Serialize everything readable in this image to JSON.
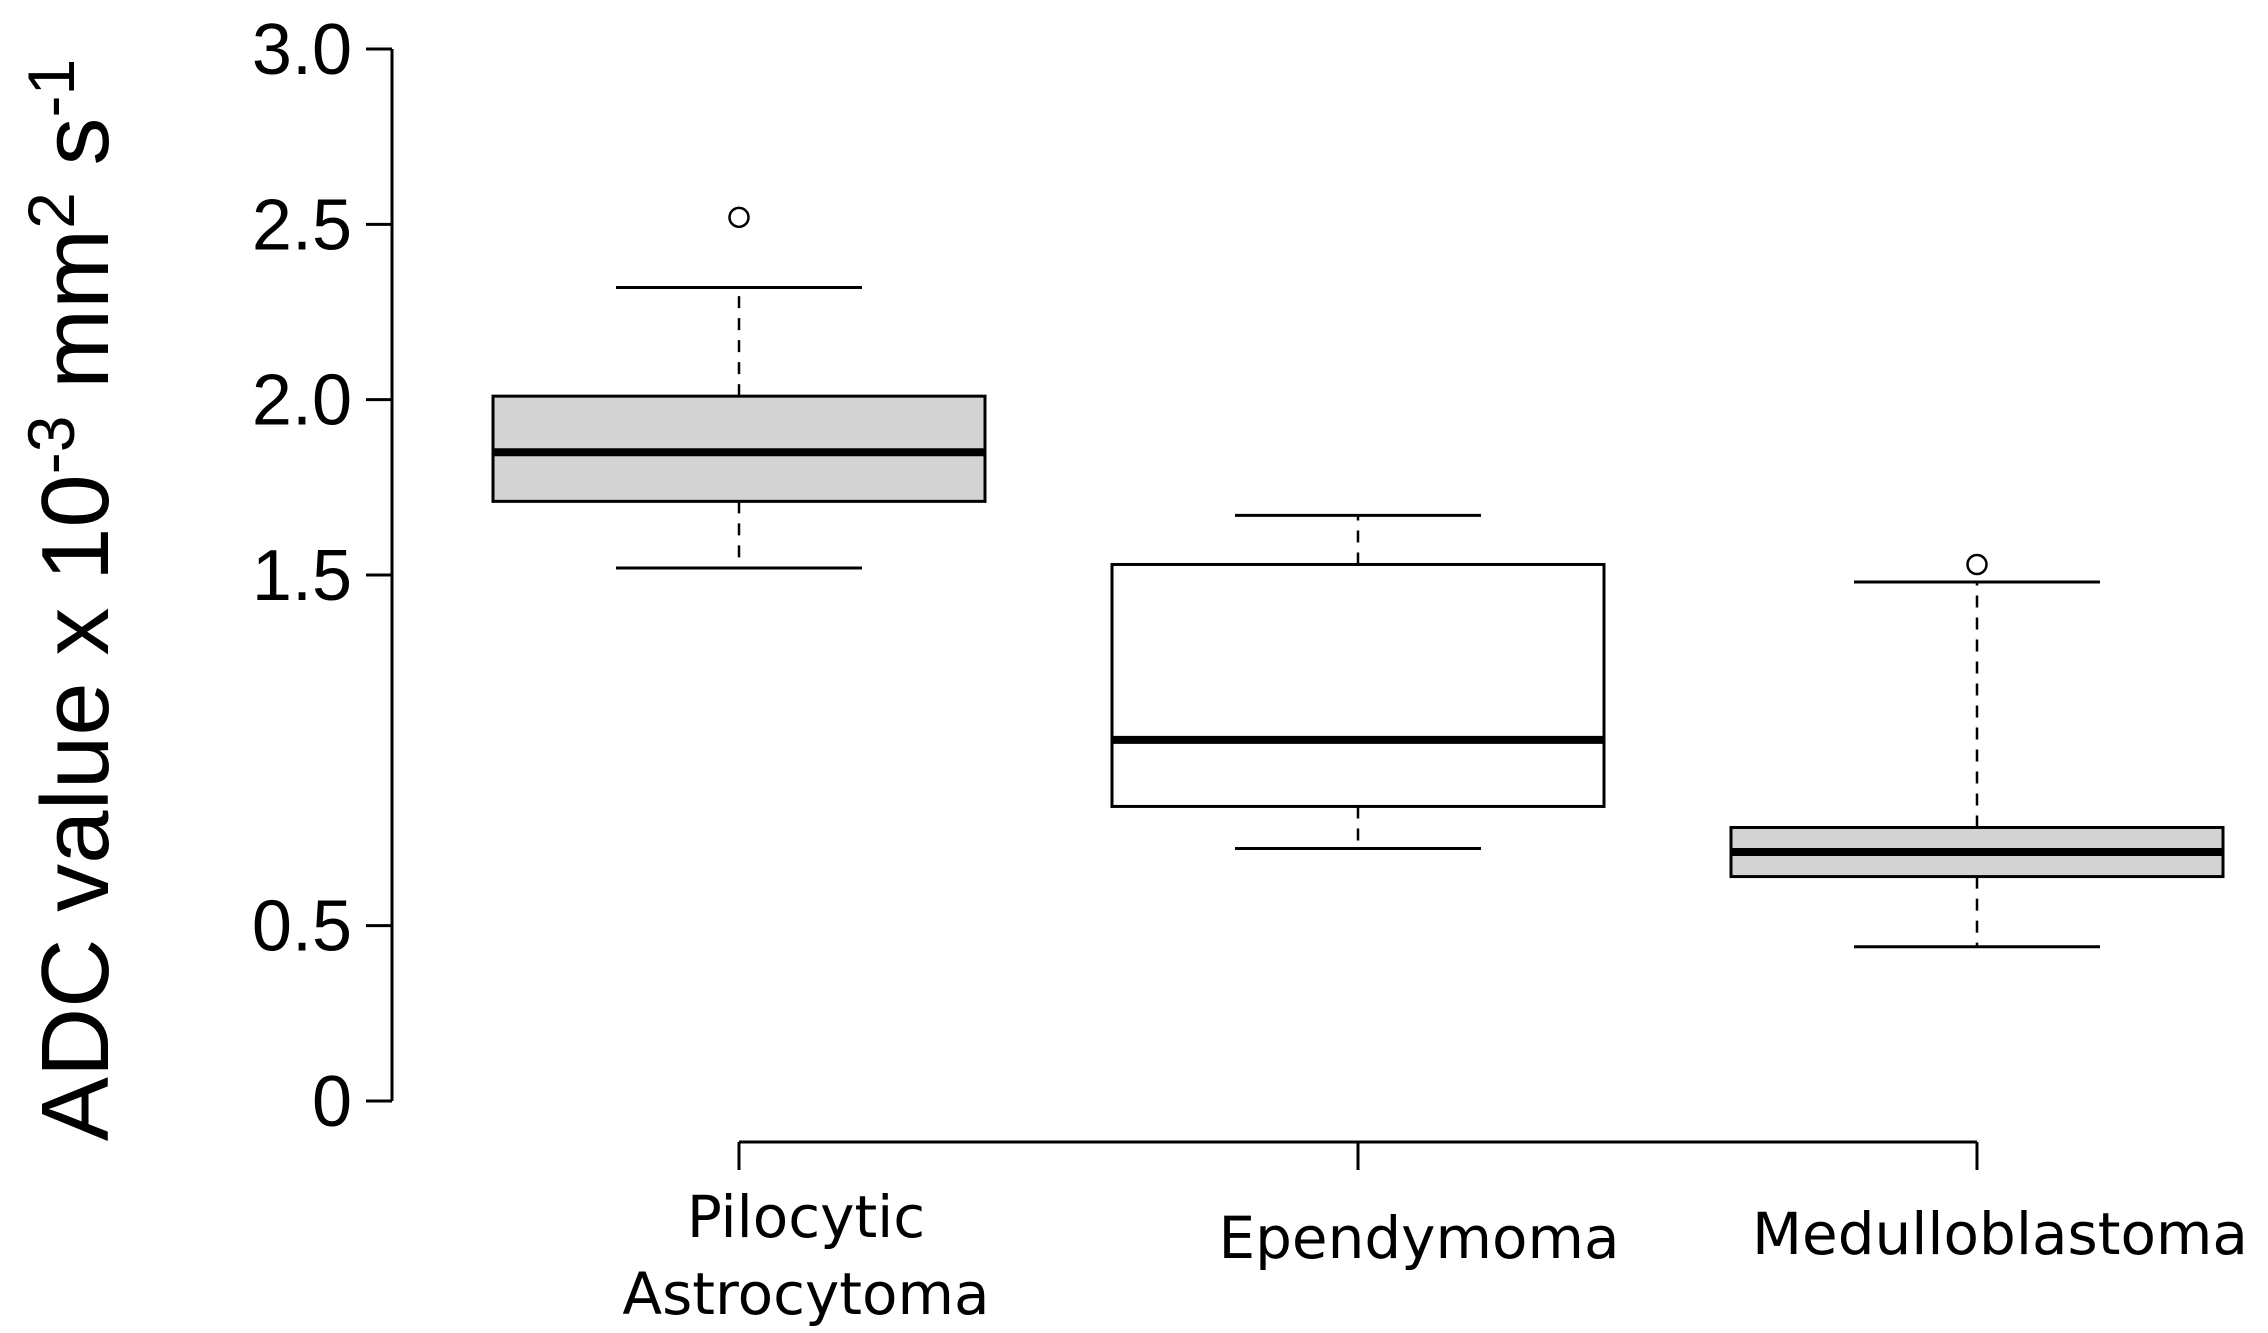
{
  "chart_data": {
    "type": "boxplot",
    "title": "",
    "xlabel": "",
    "ylabel": {
      "text": "ADC value x 10",
      "exp1": "-3",
      "unit1": " mm",
      "exp2": "2",
      "unit2": " s",
      "exp3": "-1"
    },
    "ylim": [
      0,
      3.0
    ],
    "yticks": [
      0,
      0.5,
      1.5,
      2.0,
      2.5,
      3.0
    ],
    "ytick_labels": [
      "0",
      "0.5",
      "1.5",
      "2.0",
      "2.5",
      "3.0"
    ],
    "grid": false,
    "categories": [
      {
        "label_lines": [
          "Pilocytic",
          "Astrocytoma"
        ]
      },
      {
        "label_lines": [
          "Ependymoma"
        ]
      },
      {
        "label_lines": [
          "Medulloblastoma"
        ]
      }
    ],
    "boxes": [
      {
        "name": "Pilocytic Astrocytoma",
        "whisker_low": 1.52,
        "q1": 1.71,
        "median": 1.85,
        "q3": 2.01,
        "whisker_high": 2.32,
        "outliers": [
          2.52
        ],
        "fill": "#d3d3d3"
      },
      {
        "name": "Ependymoma",
        "whisker_low": 0.72,
        "q1": 0.84,
        "median": 1.03,
        "q3": 1.53,
        "whisker_high": 1.67,
        "outliers": [],
        "fill": "#ffffff"
      },
      {
        "name": "Medulloblastoma",
        "whisker_low": 0.44,
        "q1": 0.64,
        "median": 0.71,
        "q3": 0.78,
        "whisker_high": 1.48,
        "outliers": [
          1.53
        ],
        "fill": "#d3d3d3"
      }
    ],
    "colors": {
      "line": "#000000",
      "box_gray": "#d3d3d3",
      "box_white": "#ffffff"
    }
  }
}
